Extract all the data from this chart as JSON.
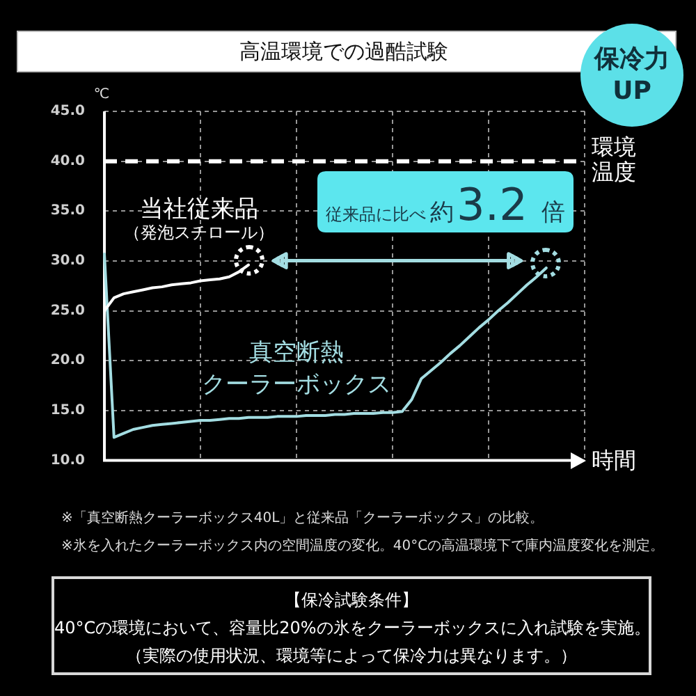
{
  "chart_data": {
    "type": "line",
    "title": "高温環境での過酷試験",
    "xlabel": "時間",
    "ylabel": "℃",
    "categories": [
      null,
      null,
      null,
      null,
      null,
      null,
      null,
      null,
      null,
      null,
      null,
      null,
      null,
      null,
      null,
      null,
      null,
      null,
      null,
      null,
      null,
      null,
      null,
      null,
      null,
      null,
      null,
      null,
      null,
      null,
      null,
      null,
      null,
      null,
      null,
      null,
      null,
      null,
      null,
      null,
      null,
      null,
      null,
      null,
      null,
      null,
      null,
      null,
      null,
      null,
      null
    ],
    "series": [
      {
        "name": "当社従来品（発泡スチロール）",
        "color": "#ffffff",
        "values": [
          25.0,
          26.3,
          26.7,
          26.9,
          27.1,
          27.3,
          27.4,
          27.6,
          27.7,
          27.8,
          28.0,
          28.1,
          28.2,
          28.4,
          28.9,
          29.6,
          null,
          null,
          null,
          null,
          null,
          null,
          null,
          null,
          null,
          null,
          null,
          null,
          null,
          null,
          null,
          null,
          null,
          null,
          null,
          null,
          null,
          null,
          null,
          null,
          null,
          null,
          null,
          null,
          null,
          null,
          null,
          null,
          null,
          null,
          null
        ]
      },
      {
        "name": "真空断熱クーラーボックス",
        "color": "#a3dde2",
        "values": [
          30.7,
          12.3,
          12.7,
          13.1,
          13.3,
          13.5,
          13.6,
          13.7,
          13.8,
          13.9,
          14.0,
          14.0,
          14.1,
          14.2,
          14.2,
          14.3,
          14.3,
          14.3,
          14.4,
          14.4,
          14.4,
          14.5,
          14.5,
          14.5,
          14.6,
          14.6,
          14.7,
          14.7,
          14.7,
          14.8,
          14.8,
          14.9,
          16.1,
          18.2,
          19.0,
          19.8,
          20.7,
          21.5,
          22.4,
          23.3,
          24.1,
          25.0,
          25.8,
          26.7,
          27.6,
          28.4,
          29.3,
          null,
          null,
          null,
          null
        ]
      }
    ],
    "ylim": [
      10,
      45
    ],
    "yticks": [
      {
        "value": 10,
        "label": "10.0"
      },
      {
        "value": 15,
        "label": "15.0"
      },
      {
        "value": 20,
        "label": "20.0"
      },
      {
        "value": 25,
        "label": "25.0"
      },
      {
        "value": 30,
        "label": "30.0"
      },
      {
        "value": 35,
        "label": "35.0"
      },
      {
        "value": 40,
        "label": "40.0"
      },
      {
        "value": 45,
        "label": "45.0"
      }
    ],
    "tick_labels": "y",
    "grid": true,
    "legend": false,
    "marker": "none",
    "line_style": "solid",
    "ref_lines": [
      {
        "axis": "y",
        "value": 40,
        "label": "環境温度",
        "color": "#ffffff",
        "line_style": "dashed"
      }
    ],
    "annotations": [
      "保冷力\nUP",
      "従来品に比べ約3.2倍",
      "※「真空断熱クーラーボックス40L」と従来品「クーラーボックス」の比較。",
      "※氷を入れたクーラーボックス内の空間温度の変化。40°Cの高温環境下で庫内温度変化を測定。",
      "【保冷試験条件】",
      "40°Cの環境において、容量比20%の氷をクーラーボックスに入れ試験を実施。",
      "（実際の使用状況、環境等によって保冷力は異なります。）"
    ]
  }
}
